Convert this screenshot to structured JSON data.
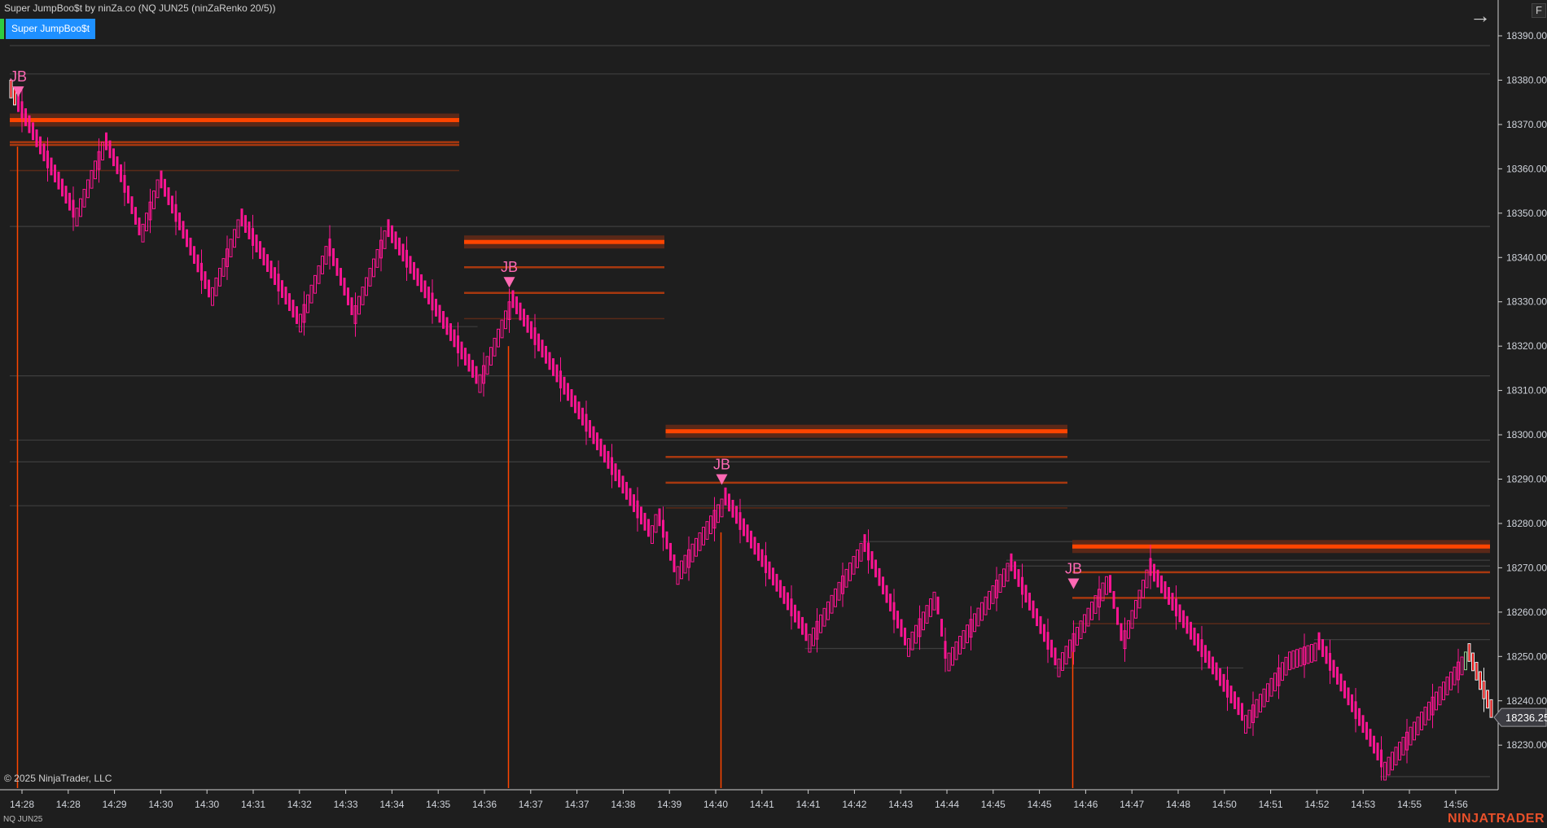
{
  "header": {
    "title": "Super JumpBoo$t by ninZa.co (NQ JUN25 (ninZaRenko 20/5))",
    "indicator_button": "Super JumpBoo$t",
    "nav_arrow_icon": "arrow-right-icon",
    "f_button": "F"
  },
  "footer": {
    "copyright": "© 2025 NinjaTrader, LLC",
    "instrument": "NQ JUN25",
    "logo": "NINJATRADER"
  },
  "colors": {
    "background": "#1e1e1e",
    "down_bar": "#ff1493",
    "up_bar_outline": "#ff1493",
    "signal": "#ff69b4",
    "level_main": "#ff4500",
    "level_band": "#5a2818",
    "level_secondary": "#a8380f",
    "swing_line": "#3e3e3e",
    "logo": "#e8502a"
  },
  "chart_data": {
    "type": "renko",
    "ylim": [
      18220,
      18395
    ],
    "y_ticks": [
      "18390.00",
      "18380.00",
      "18370.00",
      "18360.00",
      "18350.00",
      "18340.00",
      "18330.00",
      "18320.00",
      "18310.00",
      "18300.00",
      "18290.00",
      "18280.00",
      "18270.00",
      "18260.00",
      "18250.00",
      "18240.00",
      "18230.00"
    ],
    "x_ticks": [
      "14:28",
      "14:28",
      "14:29",
      "14:30",
      "14:30",
      "14:31",
      "14:32",
      "14:33",
      "14:34",
      "14:35",
      "14:36",
      "14:37",
      "14:37",
      "14:38",
      "14:39",
      "14:40",
      "14:41",
      "14:41",
      "14:42",
      "14:43",
      "14:44",
      "14:45",
      "14:45",
      "14:46",
      "14:47",
      "14:48",
      "14:50",
      "14:51",
      "14:52",
      "14:53",
      "14:55",
      "14:56"
    ],
    "last_price": "18236.25",
    "pivots": [
      {
        "bar": 0,
        "price": 18376
      },
      {
        "bar": 17,
        "price": 18349
      },
      {
        "bar": 25,
        "price": 18366
      },
      {
        "bar": 30,
        "price": 18357
      },
      {
        "bar": 35,
        "price": 18345
      },
      {
        "bar": 40,
        "price": 18357.5
      },
      {
        "bar": 54,
        "price": 18331
      },
      {
        "bar": 62,
        "price": 18348.5
      },
      {
        "bar": 78,
        "price": 18325
      },
      {
        "bar": 86,
        "price": 18342.5
      },
      {
        "bar": 93,
        "price": 18327
      },
      {
        "bar": 102,
        "price": 18346
      },
      {
        "bar": 127,
        "price": 18311.5
      },
      {
        "bar": 136,
        "price": 18330
      },
      {
        "bar": 174,
        "price": 18277
      },
      {
        "bar": 176,
        "price": 18282
      },
      {
        "bar": 181,
        "price": 18269
      },
      {
        "bar": 194,
        "price": 18285.5
      },
      {
        "bar": 217,
        "price": 18253.5
      },
      {
        "bar": 232,
        "price": 18275.5
      },
      {
        "bar": 244,
        "price": 18252.5
      },
      {
        "bar": 252,
        "price": 18264.5
      },
      {
        "bar": 255,
        "price": 18249.5
      },
      {
        "bar": 272,
        "price": 18271
      },
      {
        "bar": 285,
        "price": 18248
      },
      {
        "bar": 299,
        "price": 18268
      },
      {
        "bar": 303,
        "price": 18253.5
      },
      {
        "bar": 310,
        "price": 18269.5
      },
      {
        "bar": 336,
        "price": 18235.5
      },
      {
        "bar": 349,
        "price": 18251
      },
      {
        "bar": 356,
        "price": 18253
      },
      {
        "bar": 374,
        "price": 18225
      },
      {
        "bar": 397,
        "price": 18251
      },
      {
        "bar": 404,
        "price": 18236.25
      }
    ],
    "signals": [
      {
        "label": "JB",
        "bar": 2,
        "price": 18377.5
      },
      {
        "label": "JB",
        "bar": 136,
        "price": 18334.5
      },
      {
        "label": "JB",
        "bar": 194,
        "price": 18290
      },
      {
        "label": "JB",
        "bar": 290,
        "price": 18266.5
      }
    ],
    "zones": [
      {
        "from": 0,
        "to": 122,
        "main": 18371,
        "levels": [
          18366,
          18365.4
        ],
        "thin": 18359.6,
        "line_from_price": 18365
      },
      {
        "from": 124,
        "to": 178,
        "main": 18343.5,
        "levels": [
          18337.8,
          18332
        ],
        "thin": 18326.2,
        "line_from_price": 18320
      },
      {
        "from": 179,
        "to": 288,
        "main": 18300.8,
        "levels": [
          18295,
          18289.2
        ],
        "thin": 18283.5,
        "line_from_price": 18278
      },
      {
        "from": 290,
        "to": 404,
        "main": 18274.8,
        "levels": [
          18269,
          18263.2
        ],
        "thin": 18257.4,
        "line_from_price": 18251
      }
    ],
    "swing_lines": [
      {
        "from": 0,
        "to": 404,
        "price": 18387.8
      },
      {
        "from": 0,
        "to": 404,
        "price": 18381.4
      },
      {
        "from": 0,
        "to": 404,
        "price": 18347
      },
      {
        "from": 78,
        "to": 127,
        "price": 18324.4
      },
      {
        "from": 0,
        "to": 404,
        "price": 18313.3
      },
      {
        "from": 0,
        "to": 404,
        "price": 18298.8
      },
      {
        "from": 0,
        "to": 404,
        "price": 18293.9
      },
      {
        "from": 0,
        "to": 404,
        "price": 18284
      },
      {
        "from": 232,
        "to": 404,
        "price": 18275.9
      },
      {
        "from": 272,
        "to": 404,
        "price": 18271.7
      },
      {
        "from": 272,
        "to": 404,
        "price": 18270.4
      },
      {
        "from": 356,
        "to": 404,
        "price": 18253.8
      },
      {
        "from": 217,
        "to": 255,
        "price": 18251.8
      },
      {
        "from": 285,
        "to": 336,
        "price": 18247.4
      },
      {
        "from": 374,
        "to": 404,
        "price": 18222.9
      }
    ]
  }
}
